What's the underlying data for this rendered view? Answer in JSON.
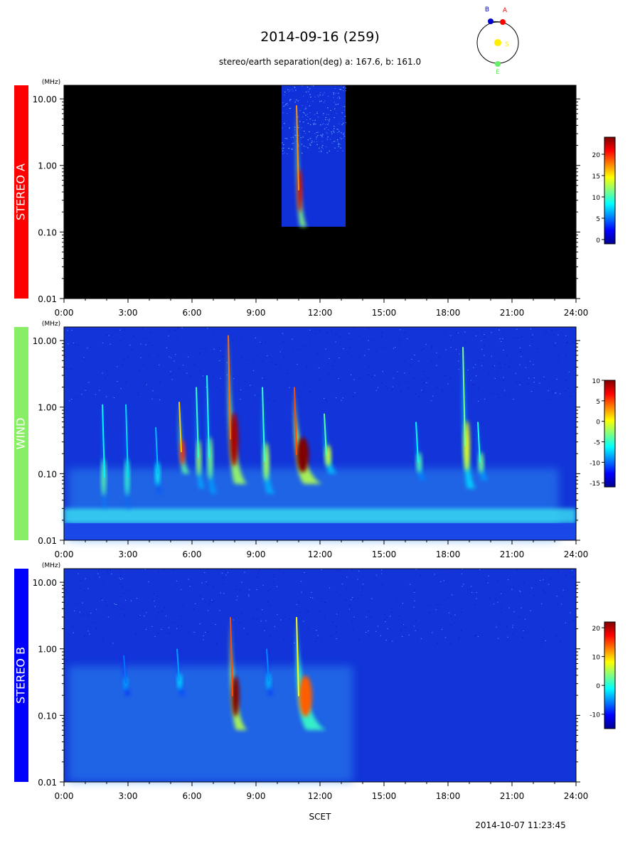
{
  "header": {
    "title": "2014-09-16 (259)",
    "subtitle": "stereo/earth separation(deg) a: 167.6, b: 161.0"
  },
  "orbit_diagram": {
    "labels": {
      "b": "B",
      "a": "A",
      "sun": "S",
      "earth": "E"
    },
    "colors": {
      "b": "#0000cc",
      "a": "#ff0000",
      "sun": "#ffee00",
      "earth": "#66ee66"
    }
  },
  "footer": {
    "xlabel": "SCET",
    "timestamp": "2014-10-07 11:23:45"
  },
  "chart_data": [
    {
      "type": "heatmap",
      "instrument": "STEREO A",
      "label_color": "#ff0000",
      "label_text_color": "#ffffff",
      "y_unit": "(MHz)",
      "yscale": "log",
      "ylim": [
        0.01,
        16
      ],
      "y_ticks": [
        {
          "value": 10,
          "label": "10.00"
        },
        {
          "value": 1,
          "label": "1.00"
        },
        {
          "value": 0.1,
          "label": "0.10"
        },
        {
          "value": 0.01,
          "label": "0.01"
        }
      ],
      "xlim": [
        "0:00",
        "24:00"
      ],
      "x_ticks": [
        "0:00",
        "3:00",
        "6:00",
        "9:00",
        "12:00",
        "15:00",
        "18:00",
        "21:00",
        "24:00"
      ],
      "data_window": [
        "10:12",
        "13:12"
      ],
      "data_freq_range": [
        0.12,
        16
      ],
      "colorbar": {
        "min": -1,
        "max": 24,
        "ticks": [
          0,
          5,
          10,
          15,
          20
        ]
      },
      "bursts": [
        {
          "start": "10:54",
          "top_mhz": 8,
          "bottom_mhz": 0.12,
          "peak": 22,
          "width_hours": 0.5
        }
      ]
    },
    {
      "type": "heatmap",
      "instrument": "WIND",
      "label_color": "#88ee66",
      "label_text_color": "#ffffff",
      "y_unit": "(MHz)",
      "yscale": "log",
      "ylim": [
        0.01,
        16
      ],
      "y_ticks": [
        {
          "value": 10,
          "label": "10.00"
        },
        {
          "value": 1,
          "label": "1.00"
        },
        {
          "value": 0.1,
          "label": "0.10"
        },
        {
          "value": 0.01,
          "label": "0.01"
        }
      ],
      "xlim": [
        "0:00",
        "24:00"
      ],
      "x_ticks": [
        "0:00",
        "3:00",
        "6:00",
        "9:00",
        "12:00",
        "15:00",
        "18:00",
        "21:00",
        "24:00"
      ],
      "colorbar": {
        "min": -16,
        "max": 10,
        "ticks": [
          10,
          5,
          0,
          -5,
          -10,
          -15
        ]
      },
      "bursts": [
        {
          "start": "1:48",
          "top_mhz": 1.1,
          "bottom_mhz": 0.03,
          "peak": -4,
          "width_hours": 0.2
        },
        {
          "start": "2:54",
          "top_mhz": 1.1,
          "bottom_mhz": 0.03,
          "peak": -5,
          "width_hours": 0.2
        },
        {
          "start": "4:18",
          "top_mhz": 0.5,
          "bottom_mhz": 0.05,
          "peak": -6,
          "width_hours": 0.3
        },
        {
          "start": "5:24",
          "top_mhz": 1.2,
          "bottom_mhz": 0.1,
          "peak": 6,
          "width_hours": 0.5
        },
        {
          "start": "6:12",
          "top_mhz": 2,
          "bottom_mhz": 0.06,
          "peak": -2,
          "width_hours": 0.4
        },
        {
          "start": "6:42",
          "top_mhz": 3,
          "bottom_mhz": 0.05,
          "peak": -3,
          "width_hours": 0.5
        },
        {
          "start": "7:42",
          "top_mhz": 12,
          "bottom_mhz": 0.07,
          "peak": 9,
          "width_hours": 0.9
        },
        {
          "start": "9:18",
          "top_mhz": 2,
          "bottom_mhz": 0.05,
          "peak": -2,
          "width_hours": 0.6
        },
        {
          "start": "10:48",
          "top_mhz": 2,
          "bottom_mhz": 0.07,
          "peak": 10,
          "width_hours": 1.3
        },
        {
          "start": "12:12",
          "top_mhz": 0.8,
          "bottom_mhz": 0.1,
          "peak": -1,
          "width_hours": 0.6
        },
        {
          "start": "16:30",
          "top_mhz": 0.6,
          "bottom_mhz": 0.08,
          "peak": -4,
          "width_hours": 0.5
        },
        {
          "start": "18:42",
          "top_mhz": 8,
          "bottom_mhz": 0.06,
          "peak": 0,
          "width_hours": 0.6
        },
        {
          "start": "19:24",
          "top_mhz": 0.6,
          "bottom_mhz": 0.08,
          "peak": -3,
          "width_hours": 0.5
        }
      ]
    },
    {
      "type": "heatmap",
      "instrument": "STEREO B",
      "label_color": "#0000ff",
      "label_text_color": "#ffffff",
      "y_unit": "(MHz)",
      "yscale": "log",
      "ylim": [
        0.01,
        16
      ],
      "y_ticks": [
        {
          "value": 10,
          "label": "10.00"
        },
        {
          "value": 1,
          "label": "1.00"
        },
        {
          "value": 0.1,
          "label": "0.10"
        },
        {
          "value": 0.01,
          "label": "0.01"
        }
      ],
      "xlim": [
        "0:00",
        "24:00"
      ],
      "x_ticks": [
        "0:00",
        "3:00",
        "6:00",
        "9:00",
        "12:00",
        "15:00",
        "18:00",
        "21:00",
        "24:00"
      ],
      "colorbar": {
        "min": -15,
        "max": 22,
        "ticks": [
          20,
          10,
          0,
          -10
        ]
      },
      "bursts": [
        {
          "start": "2:48",
          "top_mhz": 0.8,
          "bottom_mhz": 0.2,
          "peak": -4,
          "width_hours": 0.3
        },
        {
          "start": "5:18",
          "top_mhz": 1,
          "bottom_mhz": 0.2,
          "peak": -2,
          "width_hours": 0.4
        },
        {
          "start": "7:48",
          "top_mhz": 3,
          "bottom_mhz": 0.06,
          "peak": 22,
          "width_hours": 0.8
        },
        {
          "start": "9:30",
          "top_mhz": 1,
          "bottom_mhz": 0.2,
          "peak": -3,
          "width_hours": 0.3
        },
        {
          "start": "10:54",
          "top_mhz": 3,
          "bottom_mhz": 0.06,
          "peak": 14,
          "width_hours": 1.4
        }
      ]
    }
  ]
}
